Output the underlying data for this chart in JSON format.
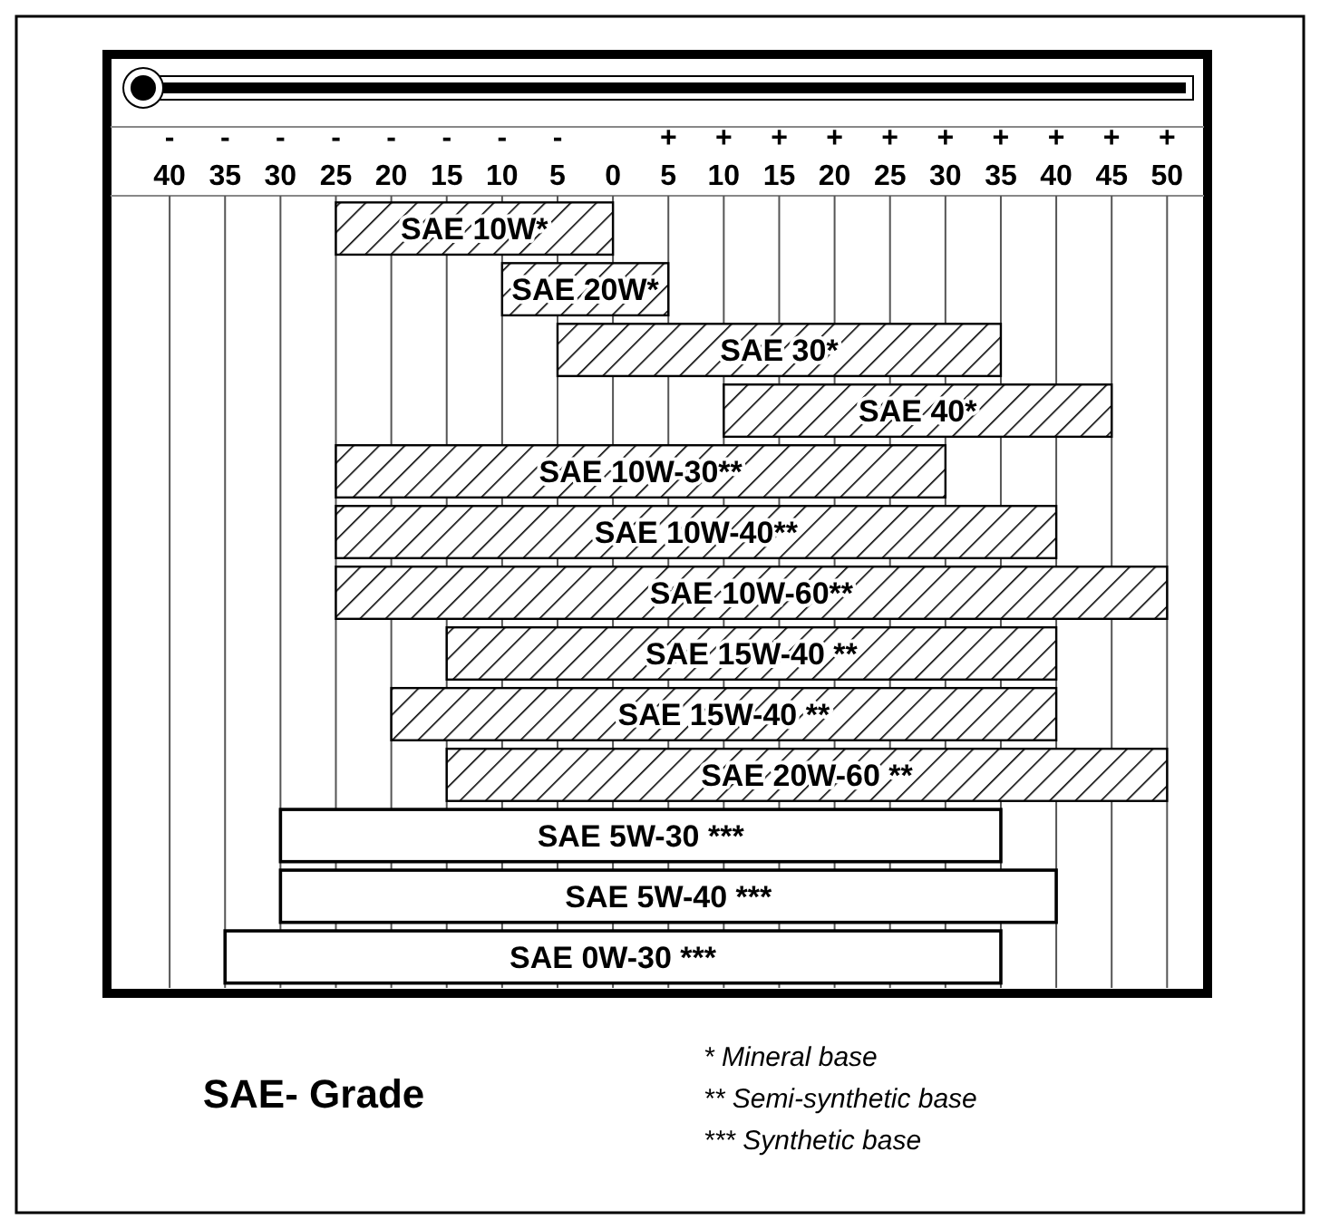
{
  "chart_data": {
    "type": "bar",
    "orientation": "horizontal",
    "title": "SAE- Grade",
    "categories": [
      "SAE 10W*",
      "SAE 20W*",
      "SAE 30*",
      "SAE 40*",
      "SAE 10W-30**",
      "SAE 10W-40**",
      "SAE 10W-60**",
      "SAE 15W-40 **",
      "SAE 15W-40 **",
      "SAE 20W-60 **",
      "SAE 5W-30 ***",
      "SAE 5W-40 ***",
      "SAE 0W-30 ***"
    ],
    "base": [
      -25,
      -10,
      -5,
      10,
      -25,
      -25,
      -25,
      -15,
      -20,
      -15,
      -30,
      -30,
      -35
    ],
    "values": [
      25,
      15,
      40,
      35,
      55,
      65,
      75,
      55,
      60,
      65,
      65,
      70,
      70
    ],
    "colors": [
      "#000000",
      "#000000",
      "#000000",
      "#000000",
      "#000000",
      "#000000",
      "#000000",
      "#000000",
      "#000000",
      "#000000",
      "#ffffff",
      "#ffffff",
      "#ffffff"
    ],
    "xlim": [
      -45,
      53
    ],
    "xticks": [
      {
        "value": -40,
        "label": "-40"
      },
      {
        "value": -35,
        "label": "-35"
      },
      {
        "value": -30,
        "label": "-30"
      },
      {
        "value": -25,
        "label": "-25"
      },
      {
        "value": -20,
        "label": "-20"
      },
      {
        "value": -15,
        "label": "-15"
      },
      {
        "value": -10,
        "label": "-10"
      },
      {
        "value": -5,
        "label": "-5"
      },
      0,
      {
        "value": 5,
        "label": "+5"
      },
      {
        "value": 10,
        "label": "+10"
      },
      {
        "value": 15,
        "label": "+15"
      },
      {
        "value": 20,
        "label": "+20"
      },
      {
        "value": 25,
        "label": "+25"
      },
      {
        "value": 30,
        "label": "+30"
      },
      {
        "value": 35,
        "label": "+35"
      },
      {
        "value": 40,
        "label": "+40"
      },
      {
        "value": 45,
        "label": "+45"
      },
      {
        "value": 50,
        "label": "+50"
      }
    ],
    "grid": "x",
    "annotations": [
      "* Mineral base",
      "** Semi-synthetic base",
      "*** Synthetic base"
    ]
  }
}
